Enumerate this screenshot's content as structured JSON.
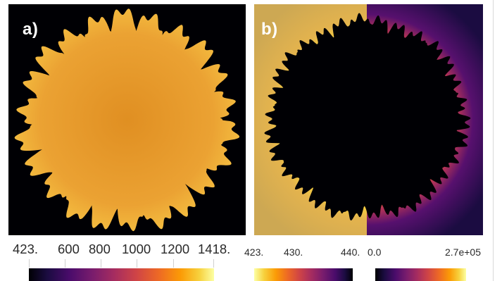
{
  "panels": {
    "a": {
      "label": "a)"
    },
    "b": {
      "label": "b)"
    }
  },
  "colorbars": {
    "a": {
      "ticks": [
        "423.",
        "600",
        "800",
        "1000",
        "1200",
        "1418."
      ],
      "colormap": "inferno"
    },
    "b_left": {
      "ticks": [
        "423.",
        "430.",
        "440."
      ],
      "colormap": "inferno-reversed"
    },
    "b_right": {
      "ticks": [
        "0.0",
        "2.7e+05"
      ],
      "colormap": "inferno"
    }
  },
  "colors": {
    "background_dark": "#000004",
    "crystal_fill": "#e79c2a",
    "crystal_tip": "#f6c443",
    "field_yellow": "#d8b24c",
    "field_purple": "#4a0c6b"
  }
}
